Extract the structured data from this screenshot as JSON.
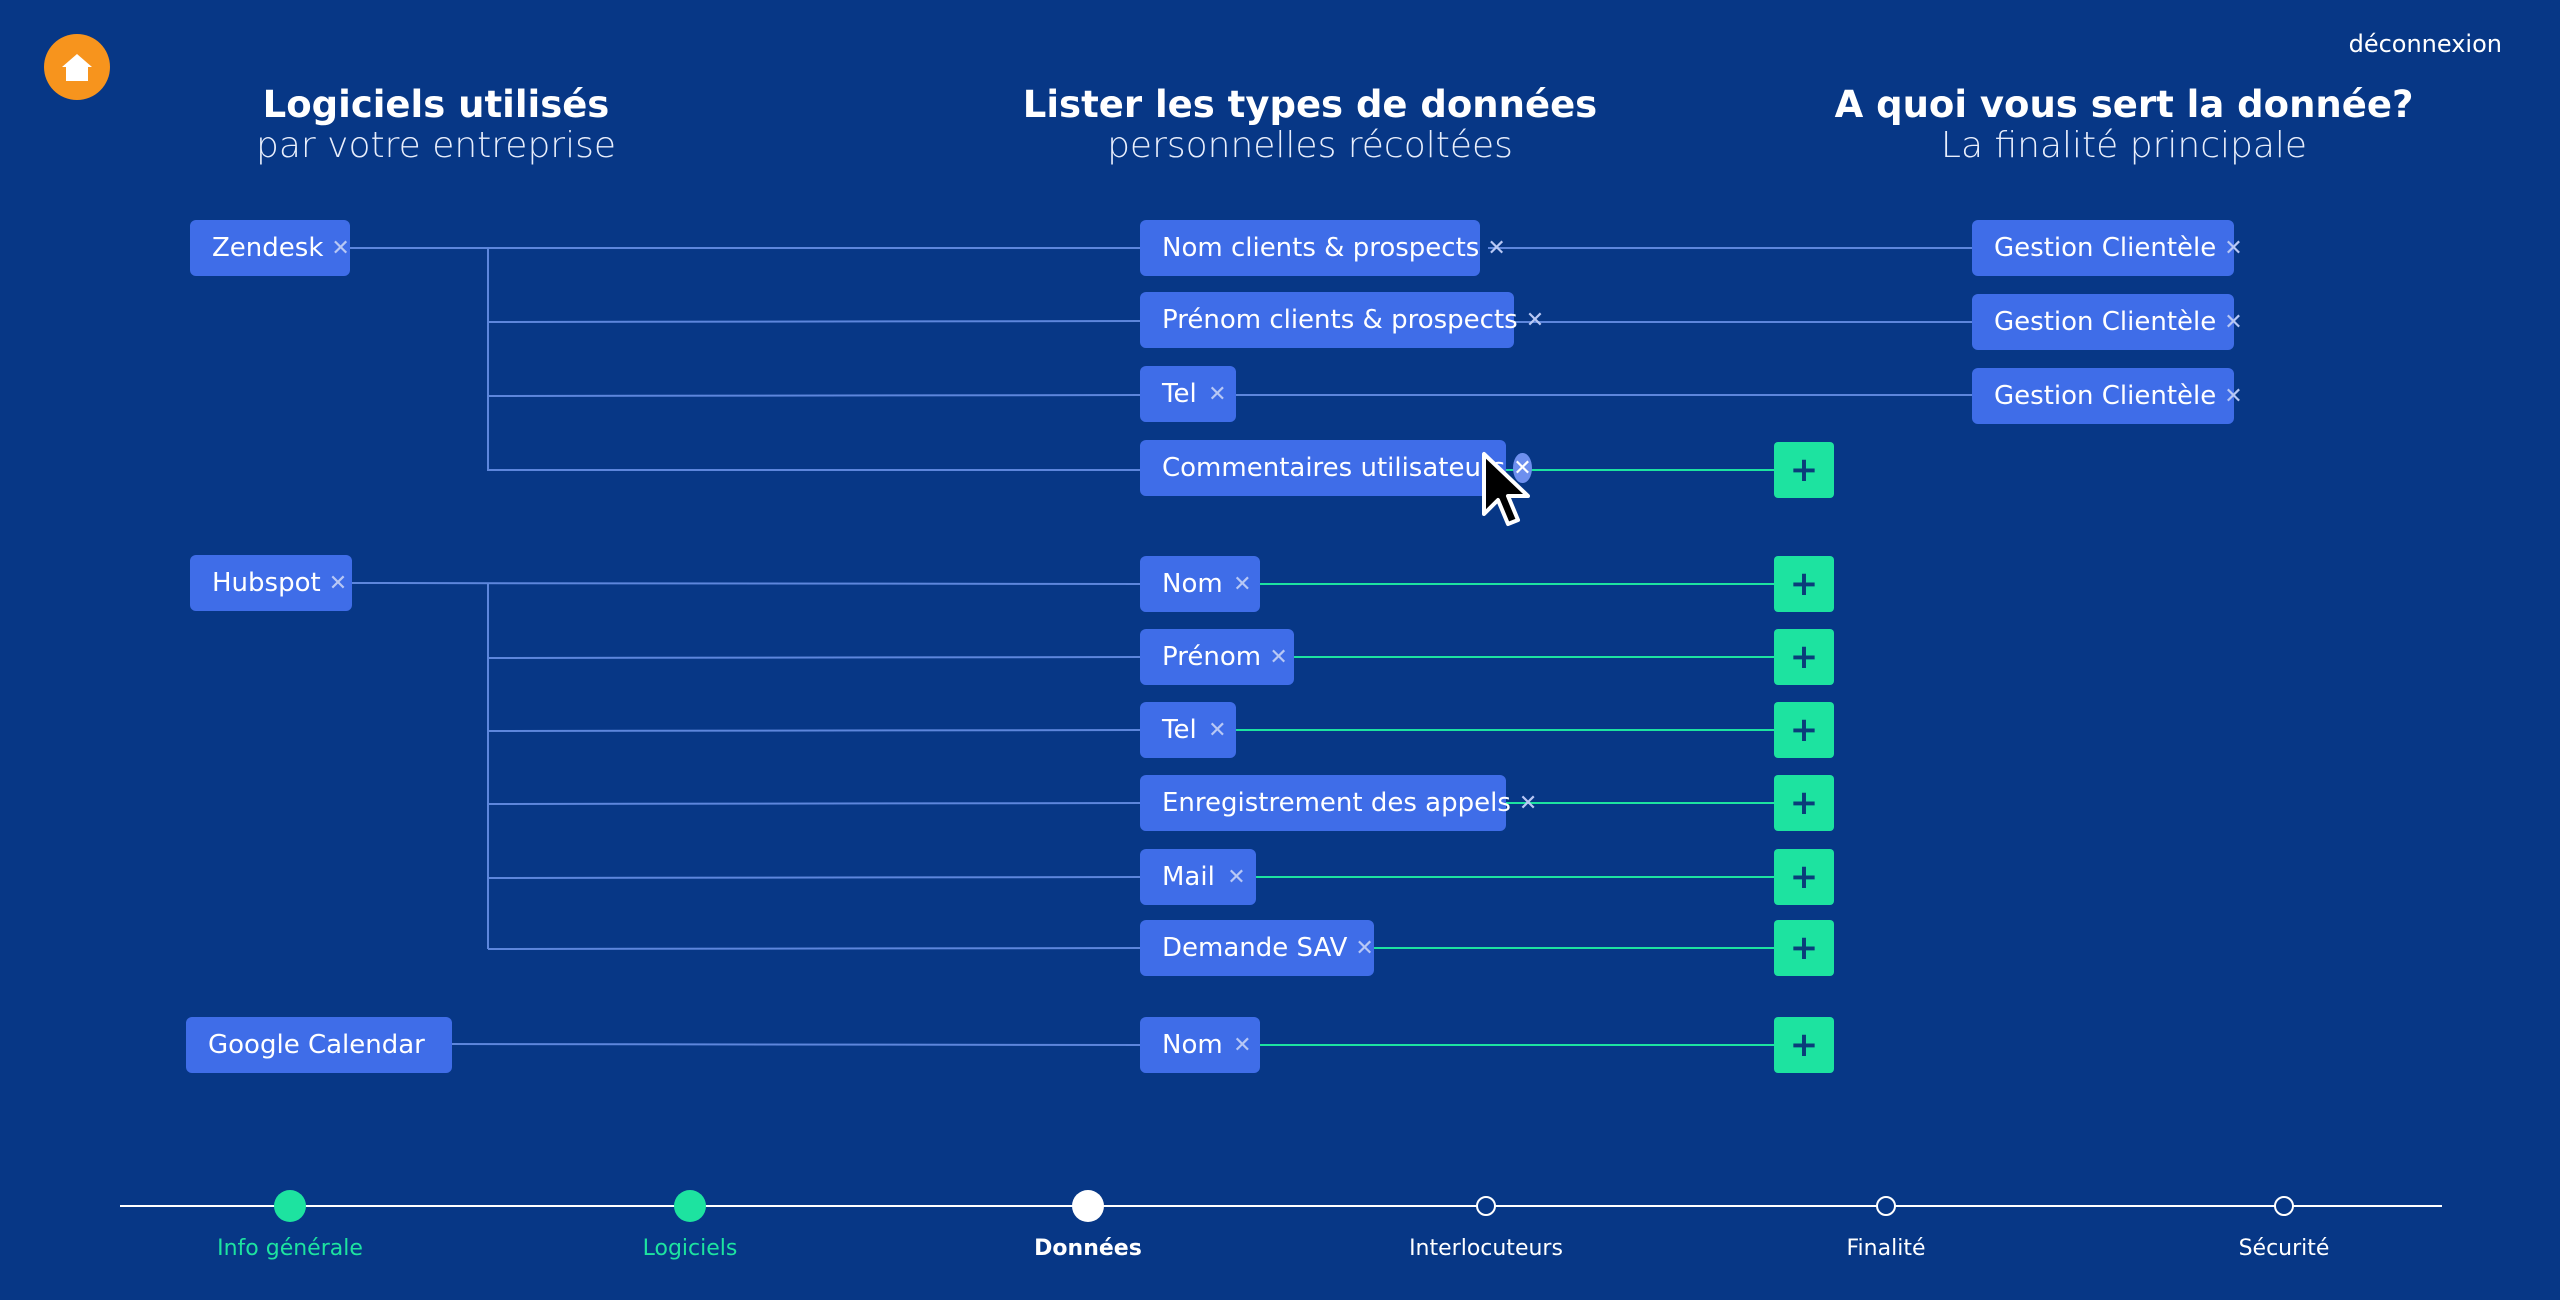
{
  "header": {
    "logout_label": "déconnexion"
  },
  "columns": {
    "software": {
      "title": "Logiciels utilisés",
      "subtitle": "par votre entreprise"
    },
    "data_types": {
      "title": "Lister les types de données",
      "subtitle": "personnelles récoltées"
    },
    "purpose": {
      "title": "A quoi vous sert la donnée?",
      "subtitle": "La finalité principale"
    }
  },
  "software": [
    "Zendesk",
    "Hubspot",
    "Google Calendar"
  ],
  "data_types": [
    "Nom clients & prospects",
    "Prénom clients & prospects",
    "Tel",
    "Commentaires utilisateurs",
    "Nom",
    "Prénom",
    "Tel",
    "Enregistrement des appels",
    "Mail",
    "Demande SAV",
    "Nom"
  ],
  "purposes": [
    "Gestion Clientèle",
    "Gestion Clientèle",
    "Gestion Clientèle"
  ],
  "icons": {
    "remove": "✕",
    "add": "+",
    "home": "home-icon"
  },
  "steps": [
    {
      "label": "Info générale",
      "state": "done"
    },
    {
      "label": "Logiciels",
      "state": "done"
    },
    {
      "label": "Données",
      "state": "current"
    },
    {
      "label": "Interlocuteurs",
      "state": "todo"
    },
    {
      "label": "Finalité",
      "state": "todo"
    },
    {
      "label": "Sécurité",
      "state": "todo"
    }
  ],
  "colors": {
    "background": "#073786",
    "tag": "#3f6de8",
    "accent_green": "#1de3a0",
    "home_orange": "#f7941d"
  }
}
